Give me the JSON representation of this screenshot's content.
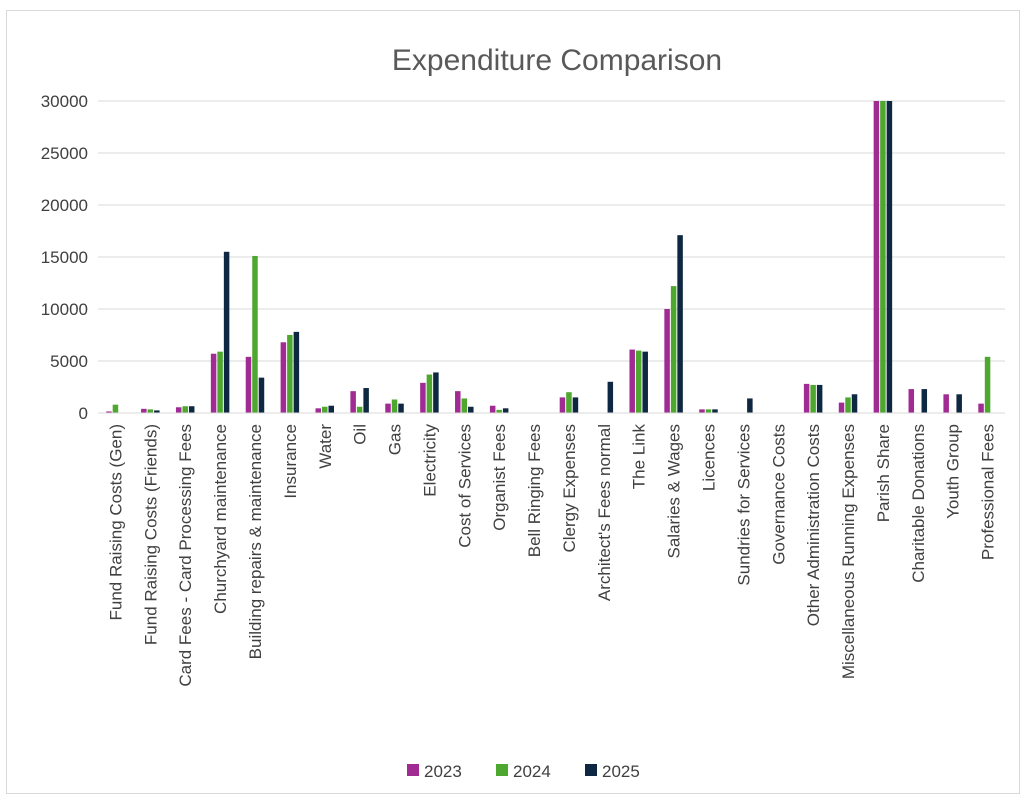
{
  "chart_data": {
    "type": "bar",
    "title": "Expenditure Comparison",
    "xlabel": "",
    "ylabel": "",
    "ylim": [
      0,
      30000
    ],
    "yticks": [
      0,
      5000,
      10000,
      15000,
      20000,
      25000,
      30000
    ],
    "grid": true,
    "legend_position": "bottom",
    "categories": [
      "Fund Raising Costs (Gen)",
      "Fund Raising Costs (Friends)",
      "Card Fees - Card Processing Fees",
      "Churchyard maintenance",
      "Building repairs & maintenance",
      "Insurance",
      "Water",
      "Oil",
      "Gas",
      "Electricity",
      "Cost of Services",
      "Organist Fees",
      "Bell Ringing Fees",
      "Clergy Expenses",
      "Architect's Fees normal",
      "The Link",
      "Salaries & Wages",
      "Licences",
      "Sundries for Services",
      "Governance Costs",
      "Other Administration Costs",
      "Miscellaneous Running Expenses",
      "Parish Share",
      "Charitable Donations",
      "Youth Group",
      "Professional Fees"
    ],
    "series": [
      {
        "name": "2023",
        "color": "#a02b93",
        "values": [
          150,
          400,
          550,
          5700,
          5400,
          6800,
          450,
          2100,
          900,
          2900,
          2100,
          700,
          0,
          1500,
          0,
          6100,
          10000,
          350,
          0,
          0,
          2800,
          1000,
          30000,
          2300,
          1800,
          900
        ]
      },
      {
        "name": "2024",
        "color": "#4ea72e",
        "values": [
          800,
          350,
          650,
          5900,
          15100,
          7500,
          600,
          600,
          1300,
          3700,
          1400,
          300,
          0,
          2000,
          0,
          6000,
          12200,
          350,
          0,
          0,
          2700,
          1500,
          30000,
          0,
          0,
          5400
        ]
      },
      {
        "name": "2025",
        "color": "#0e2841",
        "values": [
          0,
          250,
          650,
          15500,
          3400,
          7800,
          700,
          2400,
          900,
          3900,
          600,
          450,
          0,
          1500,
          3000,
          5900,
          17100,
          350,
          1400,
          0,
          2700,
          1800,
          30000,
          2300,
          1800,
          0
        ]
      }
    ]
  }
}
